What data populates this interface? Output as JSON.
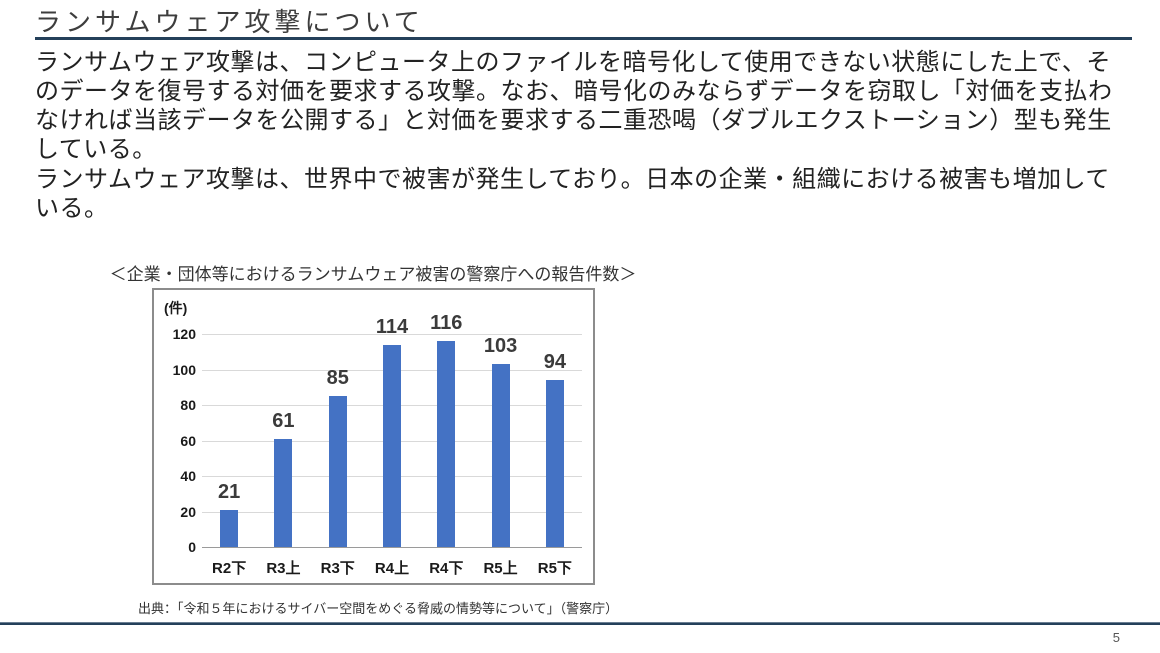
{
  "slide": {
    "title": "ランサムウェア攻撃について",
    "paragraph1_lines": [
      "ランサムウェア攻撃は、コンピュータ上のファイルを暗号化して使用できない状態にした上で、そ",
      "のデータを復号する対価を要求する攻撃。なお、暗号化のみならずデータを窃取し「対価を支払わ",
      "なければ当該データを公開する」と対価を要求する二重恐喝（ダブルエクストーション）型も発生",
      "している。"
    ],
    "paragraph2_lines": [
      "ランサムウェア攻撃は、世界中で被害が発生しており。日本の企業・組織における被害も増加して",
      "いる。"
    ],
    "page_number": "5"
  },
  "chart": {
    "caption": "＜企業・団体等におけるランサムウェア被害の警察庁への報告件数＞",
    "source": "出典：「令和５年におけるサイバー空間をめぐる脅威の情勢等について」（警察庁）"
  },
  "chart_data": {
    "type": "bar",
    "title": "＜企業・団体等におけるランサムウェア被害の警察庁への報告件数＞",
    "unit_label": "(件)",
    "categories": [
      "R2下",
      "R3上",
      "R3下",
      "R4上",
      "R4下",
      "R5上",
      "R5下"
    ],
    "values": [
      21,
      61,
      85,
      114,
      116,
      103,
      94
    ],
    "xlabel": "",
    "ylabel": "件",
    "ylim": [
      0,
      120
    ],
    "ytick_step": 20,
    "grid": true,
    "legend": false,
    "bar_color": "#4472C4"
  },
  "colors": {
    "accent_line": "#24405a",
    "bar": "#4472C4",
    "gridline": "#d9d9d9"
  }
}
